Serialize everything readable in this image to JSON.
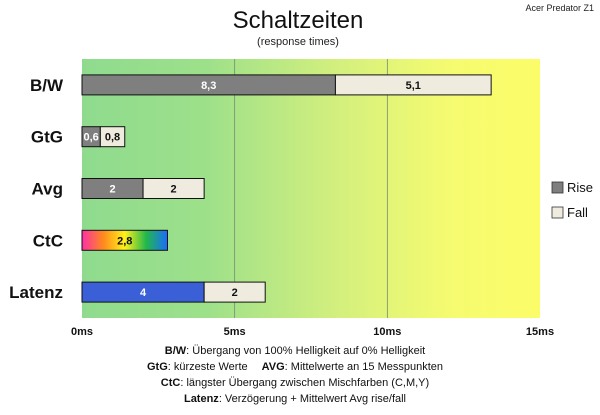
{
  "chart_data": {
    "type": "bar",
    "orientation": "horizontal",
    "stacked": true,
    "title": "Schaltzeiten",
    "subtitle": "(response times)",
    "brand": "Acer Predator Z1",
    "categories": [
      "B/W",
      "GtG",
      "Avg",
      "CtC",
      "Latenz"
    ],
    "series": [
      {
        "name": "Rise",
        "color": "#7f7f7f",
        "values": [
          8.3,
          0.6,
          2,
          null,
          null
        ],
        "labels": [
          "8,3",
          "0,6",
          "2",
          "",
          ""
        ]
      },
      {
        "name": "Fall",
        "color": "#efebdf",
        "values": [
          5.1,
          0.8,
          2,
          null,
          2
        ],
        "labels": [
          "5,1",
          "0,8",
          "2",
          "",
          "2"
        ]
      }
    ],
    "special_bars": [
      {
        "category": "CtC",
        "value": 2.8,
        "label": "2,8",
        "fill": "rainbow"
      },
      {
        "category": "Latenz",
        "value": 4,
        "label": "4",
        "fill": "#3a5fd6"
      }
    ],
    "xlim": [
      0,
      15
    ],
    "xticks": [
      0,
      5,
      10,
      15
    ],
    "xtick_labels": [
      "0ms",
      "5ms",
      "10ms",
      "15ms"
    ],
    "grid": true,
    "legend_position": "right",
    "background": "gradient green-to-yellow"
  },
  "footnotes": [
    {
      "key": "B/W",
      "text": ":  Übergang von 100% Helligkeit auf 0% Helligkeit"
    },
    {
      "key": "GtG",
      "text": ": kürzeste  Werte",
      "key2": "AVG",
      "text2": ": Mittelwerte  an 15 Messpunkten"
    },
    {
      "key": "CtC",
      "text": ": längster Übergang  zwischen Mischfarben  (C,M,Y)"
    },
    {
      "key": "Latenz",
      "text": ": Verzögerung  + Mittelwert Avg rise/fall"
    }
  ]
}
